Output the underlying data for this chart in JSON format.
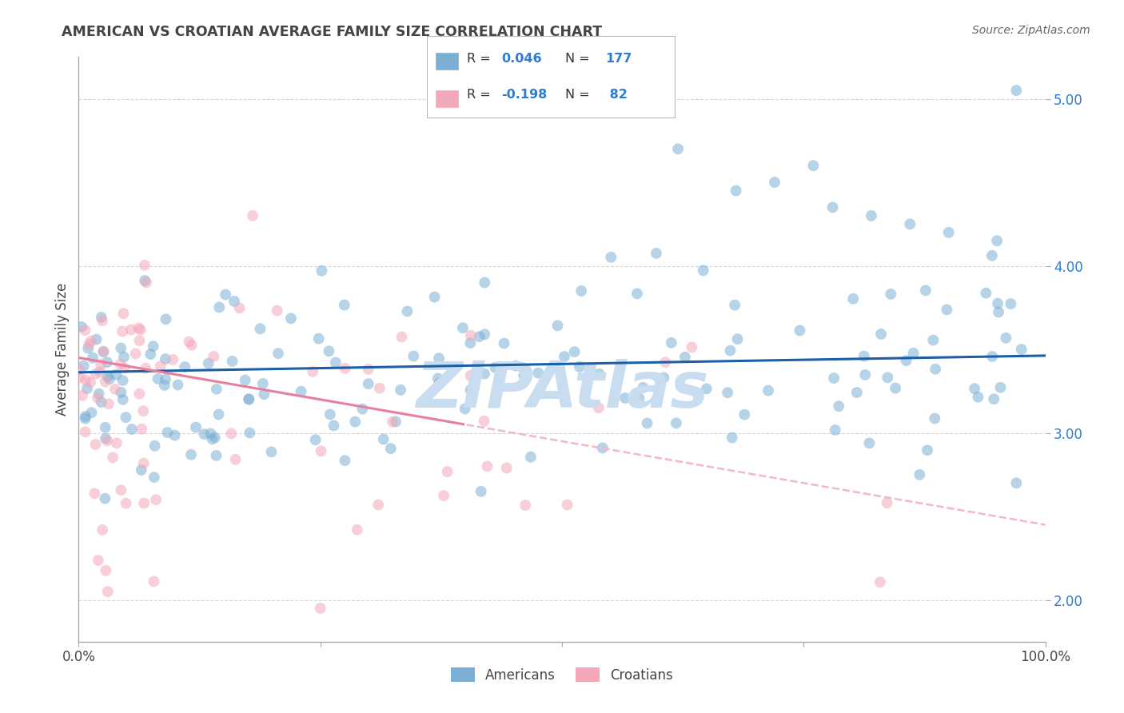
{
  "title": "AMERICAN VS CROATIAN AVERAGE FAMILY SIZE CORRELATION CHART",
  "source": "Source: ZipAtlas.com",
  "ylabel": "Average Family Size",
  "xlim": [
    0,
    1
  ],
  "ylim": [
    1.75,
    5.25
  ],
  "yticks": [
    2.0,
    3.0,
    4.0,
    5.0
  ],
  "american_color": "#7bafd4",
  "american_edge_color": "#5a9ac0",
  "croatian_color": "#f4a7b9",
  "croatian_edge_color": "#e08098",
  "american_line_color": "#1a5fa8",
  "croatian_line_color": "#e87fa0",
  "croatian_dash_color": "#f2b8c8",
  "legend_value_color": "#2b7dd4",
  "watermark": "ZIPAtlas",
  "watermark_color": "#c8ddf0",
  "background_color": "#ffffff",
  "grid_color": "#cccccc",
  "american_R": 0.046,
  "american_N": 177,
  "croatian_R": -0.198,
  "croatian_N": 82,
  "tick_label_color": "#2b7dd4",
  "axis_color": "#aaaaaa",
  "text_color": "#444444"
}
